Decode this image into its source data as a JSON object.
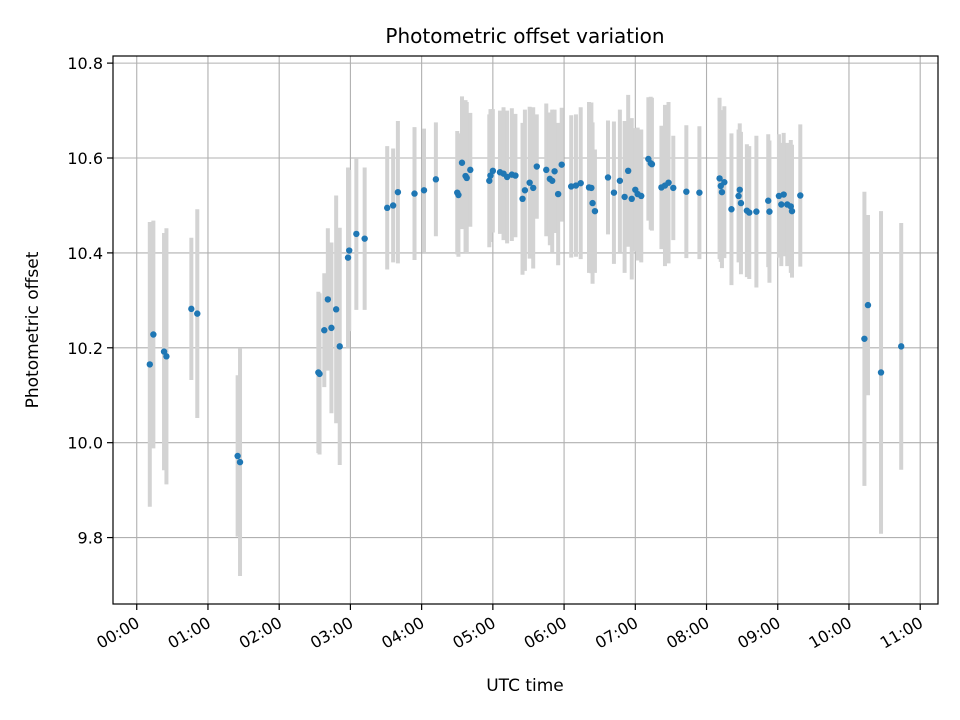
{
  "chart_data": {
    "type": "scatter",
    "title": "Photometric offset variation",
    "xlabel": "UTC time",
    "ylabel": "Photometric offset",
    "xlim": [
      "-0:20",
      "11:15"
    ],
    "ylim": [
      9.66,
      10.815
    ],
    "xticks": [
      "00:00",
      "01:00",
      "02:00",
      "03:00",
      "04:00",
      "05:00",
      "06:00",
      "07:00",
      "08:00",
      "09:00",
      "10:00",
      "11:00"
    ],
    "yticks": [
      9.8,
      10.0,
      10.2,
      10.4,
      10.6,
      10.8
    ],
    "grid": true,
    "point_color": "#1f77b4",
    "errorbar_color": "#d3d3d3",
    "series": [
      {
        "x": [
          "0:11",
          "0:14",
          "0:23",
          "0:25",
          "0:46",
          "0:51",
          "1:25",
          "1:27",
          "2:33",
          "2:34",
          "2:38",
          "2:41",
          "2:44",
          "2:48",
          "2:51",
          "2:58",
          "2:59",
          "3:05",
          "3:12",
          "3:31",
          "3:36",
          "3:40",
          "3:54",
          "4:02",
          "4:12",
          "4:30",
          "4:31",
          "4:34",
          "4:37",
          "4:38",
          "4:41",
          "4:57",
          "4:58",
          "5:00",
          "5:06",
          "5:09",
          "5:12",
          "5:16",
          "5:19",
          "5:25",
          "5:27",
          "5:31",
          "5:34",
          "5:37",
          "5:45",
          "5:48",
          "5:50",
          "5:52",
          "5:55",
          "5:58",
          "6:06",
          "6:10",
          "6:14",
          "6:21",
          "6:23",
          "6:24",
          "6:26",
          "6:37",
          "6:42",
          "6:47",
          "6:51",
          "6:54",
          "6:57",
          "7:00",
          "7:02",
          "7:05",
          "7:11",
          "7:13",
          "7:14",
          "7:22",
          "7:25",
          "7:28",
          "7:32",
          "7:43",
          "7:54",
          "8:11",
          "8:12",
          "8:13",
          "8:15",
          "8:21",
          "8:27",
          "8:28",
          "8:29",
          "8:34",
          "8:36",
          "8:42",
          "8:52",
          "8:53",
          "9:01",
          "9:03",
          "9:05",
          "9:08",
          "9:11",
          "9:12",
          "9:19",
          "10:13",
          "10:16",
          "10:27",
          "10:44"
        ],
        "y": [
          10.165,
          10.228,
          10.192,
          10.182,
          10.282,
          10.272,
          9.972,
          9.959,
          10.148,
          10.145,
          10.237,
          10.302,
          10.242,
          10.281,
          10.203,
          10.39,
          10.405,
          10.44,
          10.43,
          10.495,
          10.5,
          10.528,
          10.525,
          10.532,
          10.555,
          10.527,
          10.522,
          10.59,
          10.562,
          10.558,
          10.575,
          10.552,
          10.563,
          10.573,
          10.57,
          10.567,
          10.56,
          10.565,
          10.563,
          10.514,
          10.532,
          10.548,
          10.537,
          10.582,
          10.575,
          10.556,
          10.552,
          10.572,
          10.524,
          10.586,
          10.54,
          10.542,
          10.547,
          10.538,
          10.537,
          10.505,
          10.488,
          10.559,
          10.527,
          10.552,
          10.518,
          10.573,
          10.514,
          10.533,
          10.524,
          10.52,
          10.598,
          10.589,
          10.587,
          10.538,
          10.542,
          10.548,
          10.537,
          10.529,
          10.527,
          10.557,
          10.541,
          10.528,
          10.549,
          10.492,
          10.52,
          10.533,
          10.505,
          10.489,
          10.485,
          10.487,
          10.51,
          10.487,
          10.52,
          10.502,
          10.523,
          10.502,
          10.498,
          10.488,
          10.521,
          10.219,
          10.29,
          10.148,
          10.203
        ],
        "err": [
          0.3,
          0.24,
          0.25,
          0.27,
          0.15,
          0.22,
          0.17,
          0.24,
          0.17,
          0.17,
          0.12,
          0.15,
          0.18,
          0.24,
          0.25,
          0.19,
          0.17,
          0.16,
          0.15,
          0.13,
          0.12,
          0.15,
          0.14,
          0.13,
          0.12,
          0.13,
          0.13,
          0.14,
          0.16,
          0.16,
          0.12,
          0.14,
          0.14,
          0.13,
          0.13,
          0.14,
          0.14,
          0.14,
          0.13,
          0.16,
          0.17,
          0.16,
          0.17,
          0.11,
          0.14,
          0.14,
          0.15,
          0.13,
          0.15,
          0.12,
          0.15,
          0.15,
          0.16,
          0.18,
          0.18,
          0.17,
          0.13,
          0.12,
          0.15,
          0.15,
          0.16,
          0.16,
          0.17,
          0.13,
          0.14,
          0.14,
          0.13,
          0.14,
          0.14,
          0.13,
          0.17,
          0.17,
          0.11,
          0.14,
          0.14,
          0.17,
          0.16,
          0.16,
          0.16,
          0.16,
          0.14,
          0.14,
          0.15,
          0.14,
          0.14,
          0.16,
          0.14,
          0.15,
          0.13,
          0.13,
          0.13,
          0.13,
          0.14,
          0.14,
          0.15,
          0.31,
          0.19,
          0.34,
          0.26
        ]
      }
    ]
  }
}
